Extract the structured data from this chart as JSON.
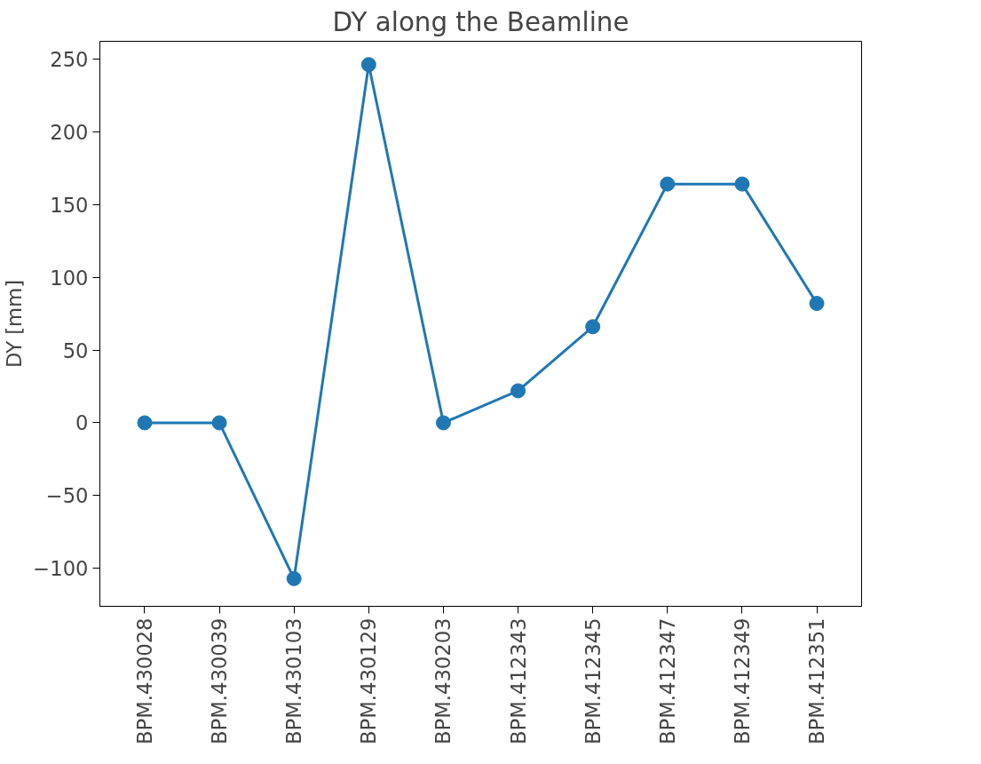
{
  "chart_data": {
    "type": "line",
    "title": "DY along the Beamline",
    "ylabel": "DY [mm]",
    "categories": [
      "BPM.430028",
      "BPM.430039",
      "BPM.430103",
      "BPM.430129",
      "BPM.430203",
      "BPM.412343",
      "BPM.412345",
      "BPM.412347",
      "BPM.412349",
      "BPM.412351"
    ],
    "series": [
      {
        "color": "#1f77b4",
        "values": [
          0,
          0,
          -107,
          246,
          0,
          22,
          66,
          164,
          164,
          82
        ]
      }
    ],
    "ylim": [
      -126,
      262
    ],
    "yticks": [
      -100,
      -50,
      0,
      50,
      100,
      150,
      200,
      250
    ],
    "grid": false,
    "marker": "circle",
    "line_style": "solid"
  }
}
